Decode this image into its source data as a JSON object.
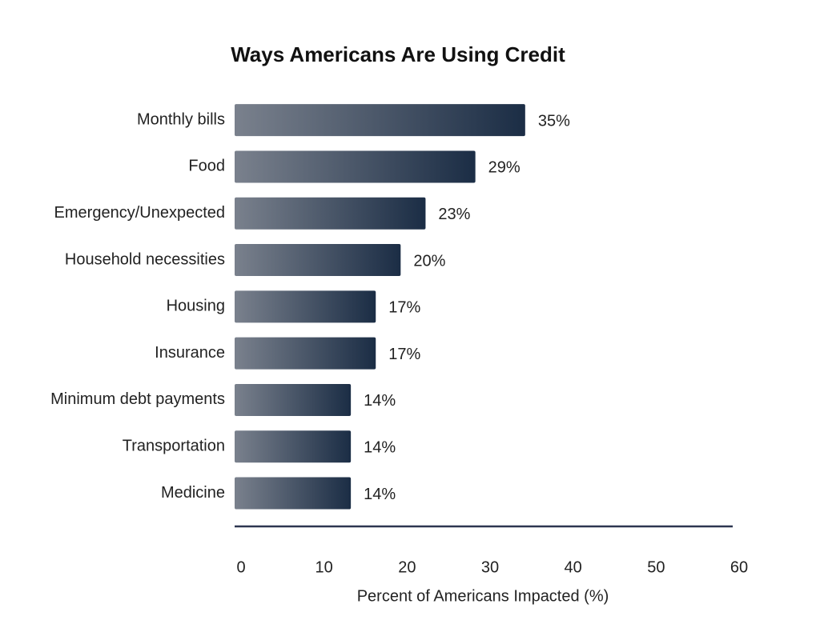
{
  "chart_data": {
    "type": "hbar",
    "title": "Ways Americans Are Using Credit",
    "categories": [
      "Monthly bills",
      "Food",
      "Emergency/Unexpected",
      "Household necessities",
      "Housing",
      "Insurance",
      "Minimum debt payments",
      "Transportation",
      "Medicine"
    ],
    "values": [
      35,
      29,
      23,
      20,
      17,
      17,
      14,
      14,
      14
    ],
    "value_labels": [
      "35%",
      "29%",
      "23%",
      "20%",
      "17%",
      "17%",
      "14%",
      "14%",
      "14%"
    ],
    "colors": [
      "#7a818d",
      "#1b2d45"
    ],
    "xlim": [
      0,
      60
    ],
    "xticks": [
      0,
      10,
      20,
      30,
      40,
      50,
      60
    ],
    "x_label": "Percent of Americans Impacted (%)"
  }
}
